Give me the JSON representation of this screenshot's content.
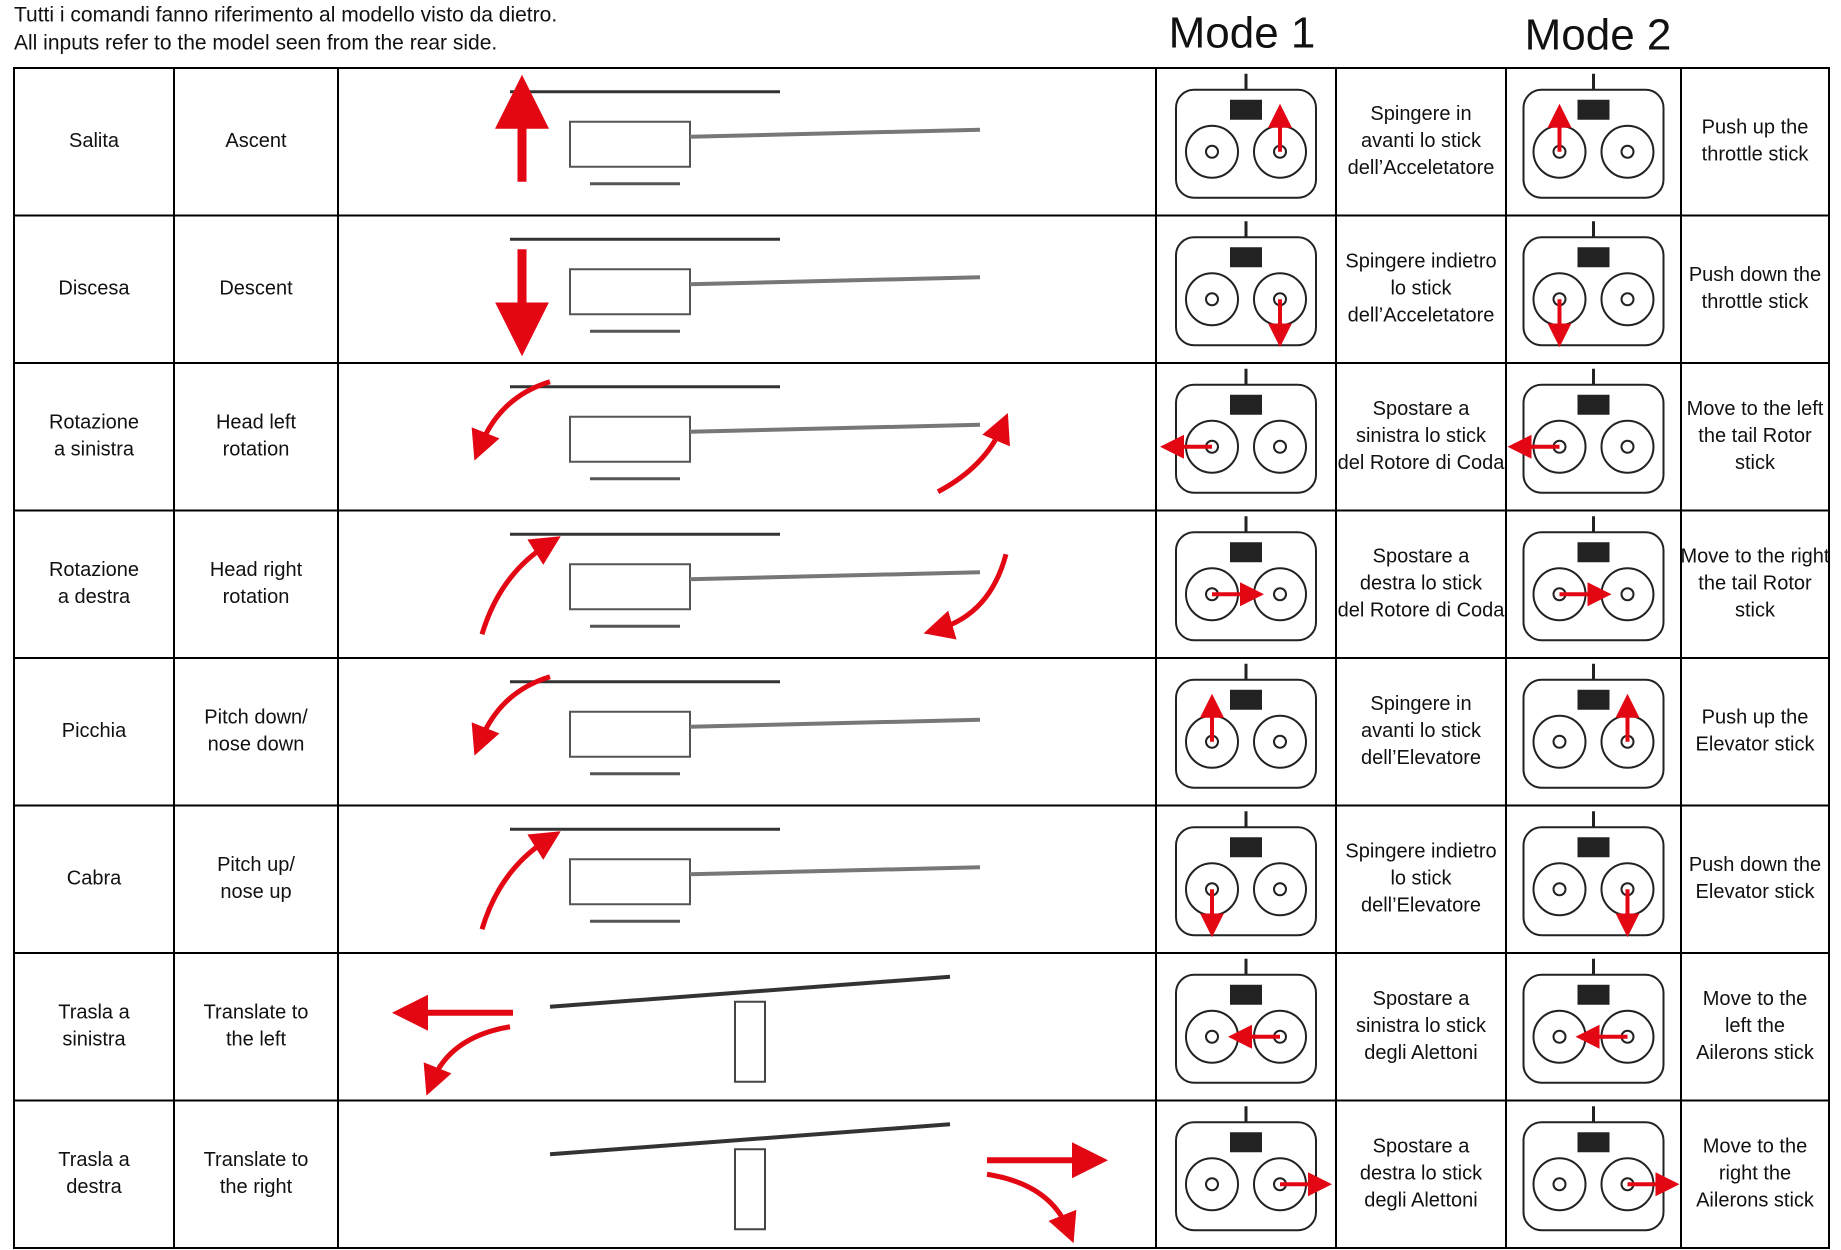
{
  "header": {
    "lines": [
      "Tutti i comandi fanno riferimento al modello visto da dietro.",
      "All inputs refer to the model seen from the rear side."
    ],
    "mode1": "Mode 1",
    "mode2": "Mode 2"
  },
  "table": {
    "rows": [
      {
        "it": [
          "Salita"
        ],
        "en": [
          "Ascent"
        ],
        "mode1": [
          "Spingere in",
          "avanti lo stick",
          "dell’Acceletatore"
        ],
        "mode2": [
          "Push up the",
          "throttle stick"
        ]
      },
      {
        "it": [
          "Discesa"
        ],
        "en": [
          "Descent"
        ],
        "mode1": [
          "Spingere indietro",
          "lo  stick",
          "dell’Acceletatore"
        ],
        "mode2": [
          "Push down the",
          "throttle stick"
        ]
      },
      {
        "it": [
          "Rotazione",
          "a sinistra"
        ],
        "en": [
          "Head left",
          "rotation"
        ],
        "mode1": [
          "Spostare a",
          "sinistra lo stick",
          "del Rotore di Coda"
        ],
        "mode2": [
          "Move to the left",
          "the tail Rotor",
          "stick"
        ]
      },
      {
        "it": [
          "Rotazione",
          "a destra"
        ],
        "en": [
          "Head right",
          "rotation"
        ],
        "mode1": [
          "Spostare a",
          "destra lo stick",
          "del Rotore di Coda"
        ],
        "mode2": [
          "Move to the right",
          "the tail Rotor",
          "stick"
        ]
      },
      {
        "it": [
          "Picchia"
        ],
        "en": [
          "Pitch down/",
          "nose down"
        ],
        "mode1": [
          "Spingere in",
          "avanti lo stick",
          "dell’Elevatore"
        ],
        "mode2": [
          "Push up the",
          "Elevator stick"
        ]
      },
      {
        "it": [
          "Cabra"
        ],
        "en": [
          "Pitch up/",
          "nose up"
        ],
        "mode1": [
          "Spingere indietro",
          "lo stick",
          "dell’Elevatore"
        ],
        "mode2": [
          "Push down the",
          "Elevator stick"
        ]
      },
      {
        "it": [
          "Trasla a",
          "sinistra"
        ],
        "en": [
          "Translate to",
          "the left"
        ],
        "mode1": [
          "Spostare a",
          "sinistra lo stick",
          "degli Alettoni"
        ],
        "mode2": [
          "Move to the",
          "left the",
          "Ailerons stick"
        ]
      },
      {
        "it": [
          "Trasla a",
          "destra"
        ],
        "en": [
          "Translate to",
          "the right"
        ],
        "mode1": [
          "Spostare a",
          "destra lo stick",
          "degli Alettoni"
        ],
        "mode2": [
          "Move to the",
          "right the",
          "Ailerons stick"
        ]
      }
    ]
  }
}
